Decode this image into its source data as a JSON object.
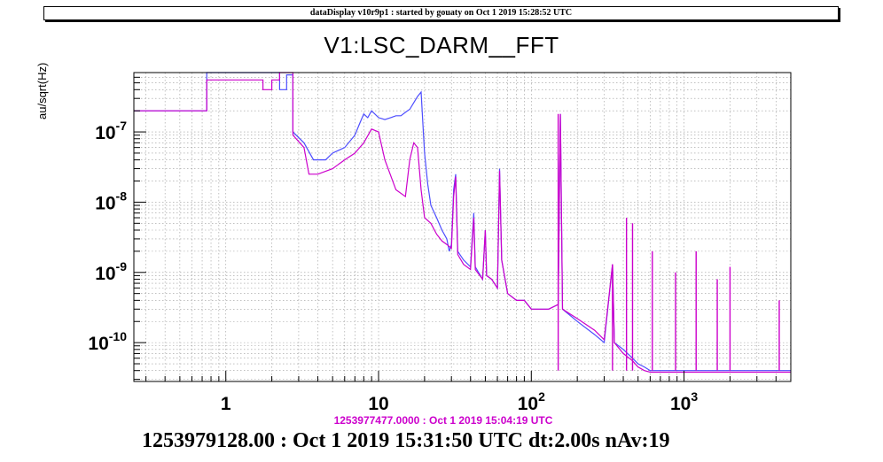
{
  "window": {
    "banner": "dataDisplay v10r9p1 : started by gouaty on Oct  1 2019 15:28:52 UTC"
  },
  "chart_data": {
    "type": "line",
    "title": "V1:LSC_DARM__FFT",
    "ylabel": "au/sqrt(Hz)",
    "xlabel": "",
    "subtitle": "1253977477.0000 : Oct  1 2019 15:04:19 UTC",
    "footer": "1253979128.00 : Oct  1 2019 15:31:50 UTC dt:2.00s nAv:19",
    "x_scale": "log",
    "y_scale": "log",
    "xlim": [
      0.25,
      5000
    ],
    "ylim": [
      2.8e-11,
      7e-07
    ],
    "grid": true,
    "colors": {
      "series_blue": "#4d4dff",
      "series_magenta": "#cc00cc"
    },
    "x_ticks": [
      {
        "value": 1,
        "label": "1"
      },
      {
        "value": 10,
        "label": "10"
      },
      {
        "value": 100,
        "label": "10",
        "exp": "2"
      },
      {
        "value": 1000,
        "label": "10",
        "exp": "3"
      }
    ],
    "y_ticks": [
      {
        "value": 1e-10,
        "label": "10",
        "exp": "-10"
      },
      {
        "value": 1e-09,
        "label": "10",
        "exp": "-9"
      },
      {
        "value": 1e-08,
        "label": "10",
        "exp": "-8"
      },
      {
        "value": 1e-07,
        "label": "10",
        "exp": "-7"
      }
    ],
    "series": [
      {
        "color": "#4d4dff",
        "points": [
          [
            0.25,
            2e-07
          ],
          [
            0.75,
            2e-07
          ],
          [
            0.75,
            7e-07
          ],
          [
            2.25,
            7e-07
          ],
          [
            2.25,
            4e-07
          ],
          [
            2.5,
            4e-07
          ],
          [
            2.5,
            6.5e-07
          ],
          [
            2.75,
            6.5e-07
          ],
          [
            2.75,
            1e-07
          ],
          [
            3.25,
            7e-08
          ],
          [
            3.75,
            4e-08
          ],
          [
            4.5,
            4e-08
          ],
          [
            5,
            5e-08
          ],
          [
            6,
            6e-08
          ],
          [
            7,
            9e-08
          ],
          [
            7.5,
            1.3e-07
          ],
          [
            8,
            1.8e-07
          ],
          [
            8.5,
            1.6e-07
          ],
          [
            9,
            2e-07
          ],
          [
            10,
            1.6e-07
          ],
          [
            11,
            1.5e-07
          ],
          [
            12,
            1.6e-07
          ],
          [
            13,
            1.7e-07
          ],
          [
            14,
            1.7e-07
          ],
          [
            15,
            1.9e-07
          ],
          [
            16,
            2.1e-07
          ],
          [
            17,
            2.6e-07
          ],
          [
            18,
            3.2e-07
          ],
          [
            19,
            3.7e-07
          ],
          [
            19.5,
            1.3e-07
          ],
          [
            20,
            5e-08
          ],
          [
            21,
            1.8e-08
          ],
          [
            22,
            9e-09
          ],
          [
            24,
            6e-09
          ],
          [
            26,
            4e-09
          ],
          [
            28,
            3e-09
          ],
          [
            29,
            2e-09
          ],
          [
            30,
            2.5e-09
          ],
          [
            31,
            1.5e-08
          ],
          [
            32,
            2.5e-08
          ],
          [
            33,
            2e-09
          ],
          [
            36,
            1.5e-09
          ],
          [
            40,
            1.2e-09
          ],
          [
            42,
            7e-09
          ],
          [
            43,
            1.2e-09
          ],
          [
            48,
            8e-10
          ],
          [
            50,
            4e-09
          ],
          [
            51,
            9e-10
          ],
          [
            55,
            8e-10
          ],
          [
            60,
            6e-10
          ],
          [
            62,
            3e-08
          ],
          [
            64,
            1.5e-09
          ],
          [
            70,
            5e-10
          ],
          [
            80,
            4e-10
          ],
          [
            90,
            4e-10
          ],
          [
            100,
            3e-10
          ],
          [
            110,
            3e-10
          ],
          [
            130,
            3e-10
          ],
          [
            150,
            3.5e-10
          ],
          [
            155,
            1.8e-07
          ],
          [
            160,
            3e-10
          ],
          [
            200,
            2e-10
          ],
          [
            260,
            1.3e-10
          ],
          [
            300,
            1e-10
          ],
          [
            340,
            1.3e-09
          ],
          [
            350,
            1e-10
          ],
          [
            400,
            8e-11
          ],
          [
            460,
            6e-11
          ],
          [
            500,
            5e-11
          ],
          [
            550,
            4.5e-11
          ],
          [
            600,
            4e-11
          ],
          [
            700,
            4e-11
          ],
          [
            800,
            4e-11
          ],
          [
            1000,
            4e-11
          ],
          [
            1200,
            4e-11
          ],
          [
            1500,
            4e-11
          ],
          [
            2000,
            4e-11
          ],
          [
            3000,
            4e-11
          ],
          [
            5000,
            4e-11
          ]
        ]
      },
      {
        "color": "#cc00cc",
        "points": [
          [
            0.25,
            2e-07
          ],
          [
            0.75,
            2e-07
          ],
          [
            0.75,
            5.5e-07
          ],
          [
            1.75,
            5.5e-07
          ],
          [
            1.75,
            4e-07
          ],
          [
            2.0,
            4e-07
          ],
          [
            2.0,
            5.5e-07
          ],
          [
            2.25,
            5.5e-07
          ],
          [
            2.25,
            7e-07
          ],
          [
            2.75,
            7e-07
          ],
          [
            2.75,
            9e-08
          ],
          [
            3.25,
            6e-08
          ],
          [
            3.5,
            2.5e-08
          ],
          [
            4,
            2.5e-08
          ],
          [
            5,
            3e-08
          ],
          [
            6,
            4e-08
          ],
          [
            7,
            5e-08
          ],
          [
            8,
            7e-08
          ],
          [
            9,
            1.1e-07
          ],
          [
            10,
            1e-07
          ],
          [
            11,
            4e-08
          ],
          [
            13,
            1.5e-08
          ],
          [
            15,
            1.2e-08
          ],
          [
            16,
            4e-08
          ],
          [
            17,
            7e-08
          ],
          [
            18,
            6e-08
          ],
          [
            19,
            1.5e-08
          ],
          [
            20,
            6e-09
          ],
          [
            22,
            5e-09
          ],
          [
            24,
            3.5e-09
          ],
          [
            26,
            2.8e-09
          ],
          [
            28,
            2.5e-09
          ],
          [
            30,
            2.2e-09
          ],
          [
            31,
            1.2e-08
          ],
          [
            32,
            2.3e-08
          ],
          [
            33,
            1.8e-09
          ],
          [
            36,
            1.3e-09
          ],
          [
            40,
            1.1e-09
          ],
          [
            42,
            6e-09
          ],
          [
            43,
            1.1e-09
          ],
          [
            48,
            8e-10
          ],
          [
            50,
            4e-09
          ],
          [
            51,
            9e-10
          ],
          [
            55,
            8e-10
          ],
          [
            60,
            6e-10
          ],
          [
            62,
            2.8e-08
          ],
          [
            64,
            1.5e-09
          ],
          [
            70,
            5e-10
          ],
          [
            80,
            4e-10
          ],
          [
            90,
            4e-10
          ],
          [
            100,
            3e-10
          ],
          [
            110,
            3e-10
          ],
          [
            130,
            3e-10
          ],
          [
            150,
            3.5e-10
          ],
          [
            155,
            1.8e-07
          ],
          [
            160,
            3e-10
          ],
          [
            200,
            2.2e-10
          ],
          [
            260,
            1.5e-10
          ],
          [
            300,
            1.1e-10
          ],
          [
            340,
            1.3e-09
          ],
          [
            350,
            1e-10
          ],
          [
            400,
            7e-11
          ],
          [
            460,
            5.5e-11
          ],
          [
            500,
            4.5e-11
          ],
          [
            550,
            4e-11
          ],
          [
            600,
            3.8e-11
          ],
          [
            700,
            3.8e-11
          ],
          [
            800,
            3.8e-11
          ],
          [
            1000,
            3.8e-11
          ],
          [
            1200,
            3.8e-11
          ],
          [
            1500,
            3.8e-11
          ],
          [
            2000,
            3.8e-11
          ],
          [
            3000,
            3.8e-11
          ],
          [
            5000,
            3.8e-11
          ]
        ]
      }
    ],
    "peaks": [
      {
        "x": 150,
        "y": 1.8e-07
      },
      {
        "x": 340,
        "y": 1.3e-09
      },
      {
        "x": 420,
        "y": 6e-09
      },
      {
        "x": 460,
        "y": 5e-09
      },
      {
        "x": 620,
        "y": 2e-09
      },
      {
        "x": 880,
        "y": 1e-09
      },
      {
        "x": 1200,
        "y": 2e-09
      },
      {
        "x": 1650,
        "y": 8e-10
      },
      {
        "x": 2000,
        "y": 1.2e-09
      },
      {
        "x": 4200,
        "y": 4e-10
      }
    ]
  }
}
